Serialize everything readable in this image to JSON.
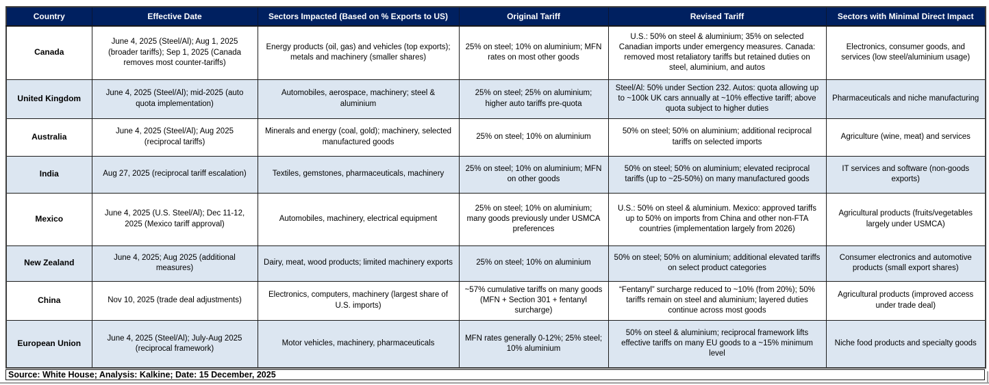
{
  "table": {
    "columns": [
      "Country",
      "Effective Date",
      "Sectors Impacted (Based on % Exports to US)",
      "Original Tariff",
      "Revised Tariff",
      "Sectors with Minimal Direct Impact"
    ],
    "rows": [
      {
        "country": "Canada",
        "effective_date": "June 4, 2025 (Steel/Al); Aug 1, 2025 (broader tariffs); Sep 1, 2025 (Canada removes most counter-tariffs)",
        "sectors_impacted": "Energy products (oil, gas) and vehicles (top exports); metals and machinery (smaller shares)",
        "original_tariff": "25% on steel; 10% on aluminium; MFN rates on most other goods",
        "revised_tariff": "U.S.: 50% on steel & aluminium; 35% on selected Canadian imports under emergency measures. Canada: removed most retaliatory tariffs but retained duties on steel, aluminium, and autos",
        "minimal_impact": "Electronics, consumer goods, and services (low steel/aluminium usage)"
      },
      {
        "country": "United Kingdom",
        "effective_date": "June 4, 2025 (Steel/Al); mid-2025 (auto quota implementation)",
        "sectors_impacted": "Automobiles, aerospace, machinery; steel & aluminium",
        "original_tariff": "25% on steel; 25% on aluminium; higher auto tariffs pre-quota",
        "revised_tariff": "Steel/Al: 50% under Section 232. Autos: quota allowing up to ~100k UK cars annually at ~10% effective tariff; above quota subject to higher duties",
        "minimal_impact": "Pharmaceuticals and niche manufacturing"
      },
      {
        "country": "Australia",
        "effective_date": "June 4, 2025 (Steel/Al); Aug 2025 (reciprocal tariffs)",
        "sectors_impacted": "Minerals and energy (coal, gold); machinery, selected manufactured goods",
        "original_tariff": "25% on steel; 10% on aluminium",
        "revised_tariff": "50% on steel; 50% on aluminium; additional reciprocal tariffs on selected imports",
        "minimal_impact": "Agriculture (wine, meat) and services"
      },
      {
        "country": "India",
        "effective_date": "Aug 27, 2025 (reciprocal tariff escalation)",
        "sectors_impacted": "Textiles, gemstones, pharmaceuticals, machinery",
        "original_tariff": "25% on steel; 10% on aluminium; MFN on other goods",
        "revised_tariff": "50% on steel; 50% on aluminium; elevated reciprocal tariffs (up to ~25-50%) on many manufactured goods",
        "minimal_impact": "IT services and software (non-goods exports)"
      },
      {
        "country": "Mexico",
        "effective_date": "June 4, 2025 (U.S. Steel/Al); Dec 11-12, 2025 (Mexico tariff approval)",
        "sectors_impacted": "Automobiles, machinery, electrical equipment",
        "original_tariff": "25% on steel; 10% on aluminium; many goods previously under USMCA preferences",
        "revised_tariff": "U.S.: 50% on steel & aluminium. Mexico: approved tariffs up to 50% on imports from China and other non-FTA countries (implementation largely from 2026)",
        "minimal_impact": "Agricultural products (fruits/vegetables largely under USMCA)"
      },
      {
        "country": "New Zealand",
        "effective_date": "June 4, 2025; Aug 2025 (additional measures)",
        "sectors_impacted": "Dairy, meat, wood products; limited machinery exports",
        "original_tariff": "25% on steel; 10% on aluminium",
        "revised_tariff": "50% on steel; 50% on aluminium; additional elevated tariffs on select product categories",
        "minimal_impact": "Consumer electronics and automotive products (small export shares)"
      },
      {
        "country": "China",
        "effective_date": "Nov 10, 2025 (trade deal adjustments)",
        "sectors_impacted": "Electronics, computers, machinery (largest share of U.S. imports)",
        "original_tariff": "~57% cumulative tariffs on many goods (MFN + Section 301 + fentanyl surcharge)",
        "revised_tariff": "“Fentanyl” surcharge reduced to ~10% (from 20%); 50% tariffs remain on steel and aluminium; layered duties continue across most goods",
        "minimal_impact": "Agricultural products (improved access under trade deal)"
      },
      {
        "country": "European Union",
        "effective_date": "June 4, 2025 (Steel/Al); July-Aug 2025 (reciprocal framework)",
        "sectors_impacted": "Motor vehicles, machinery, pharmaceuticals",
        "original_tariff": "MFN rates generally 0-12%; 25% steel; 10% aluminium",
        "revised_tariff": "50% on steel & aluminium; reciprocal framework lifts effective tariffs on many EU goods to a ~15% minimum level",
        "minimal_impact": "Niche food products and specialty goods"
      }
    ]
  },
  "footer": {
    "text": "Source: White House; Analysis: Kalkine; Date: 15 December, 2025"
  },
  "colors": {
    "header_bg": "#002060",
    "header_text": "#FFFFFF",
    "row_bg": "#FFFFFF",
    "alt_row_bg": "#DCE6F1",
    "border": "#1A1A1A"
  }
}
